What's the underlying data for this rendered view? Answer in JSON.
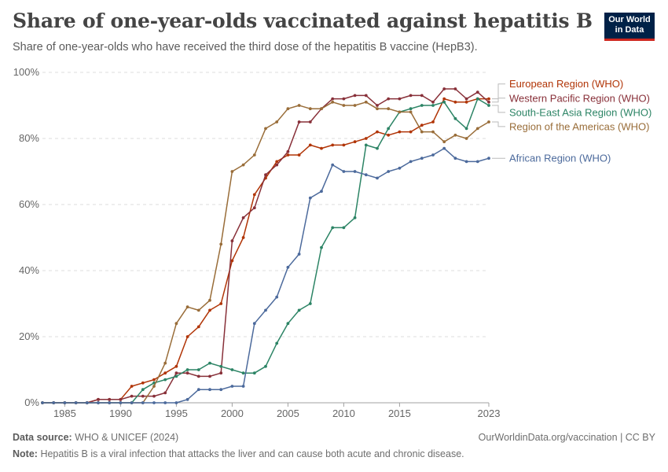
{
  "header": {
    "title": "Share of one-year-olds vaccinated against hepatitis B",
    "subtitle": "Share of one-year-olds who have received the third dose of the hepatitis B vaccine (HepB3).",
    "logo_line1": "Our World",
    "logo_line2": "in Data"
  },
  "footer": {
    "source_label": "Data source:",
    "source_value": "WHO & UNICEF (2024)",
    "url": "OurWorldinData.org/vaccination | CC BY",
    "note_label": "Note:",
    "note_value": "Hepatitis B is a viral infection that attacks the liver and can cause both acute and chronic disease."
  },
  "chart_data": {
    "type": "line",
    "x": [
      1983,
      1984,
      1985,
      1986,
      1987,
      1988,
      1989,
      1990,
      1991,
      1992,
      1993,
      1994,
      1995,
      1996,
      1997,
      1998,
      1999,
      2000,
      2001,
      2002,
      2003,
      2004,
      2005,
      2006,
      2007,
      2008,
      2009,
      2010,
      2011,
      2012,
      2013,
      2014,
      2015,
      2016,
      2017,
      2018,
      2019,
      2020,
      2021,
      2022,
      2023
    ],
    "xlim": [
      1983,
      2023
    ],
    "x_ticks": [
      1985,
      1990,
      1995,
      2000,
      2005,
      2010,
      2015,
      2023
    ],
    "y_ticks": [
      0,
      20,
      40,
      60,
      80,
      100
    ],
    "y_tick_labels": [
      "0%",
      "20%",
      "40%",
      "60%",
      "80%",
      "100%"
    ],
    "ylim": [
      0,
      100
    ],
    "grid": "horizontal dashed",
    "legend": "right, labels at line ends",
    "series": [
      {
        "name": "European Region (WHO)",
        "color": "#b13507",
        "label_y": 96.5,
        "values": [
          0,
          0,
          0,
          0,
          0,
          1,
          1,
          1,
          5,
          6,
          7,
          9,
          11,
          20,
          23,
          28,
          30,
          43,
          50,
          63,
          68,
          73,
          75,
          75,
          78,
          77,
          78,
          78,
          79,
          80,
          82,
          81,
          82,
          82,
          84,
          85,
          92,
          91,
          91,
          92,
          92
        ]
      },
      {
        "name": "Western Pacific Region (WHO)",
        "color": "#883039",
        "label_y": 92.2,
        "values": [
          0,
          0,
          0,
          0,
          0,
          1,
          1,
          1,
          2,
          2,
          2,
          3,
          9,
          9,
          8,
          8,
          9,
          49,
          56,
          59,
          69,
          72,
          76,
          85,
          85,
          89,
          92,
          92,
          93,
          93,
          90,
          92,
          92,
          93,
          93,
          91,
          95,
          95,
          92,
          94,
          91
        ]
      },
      {
        "name": "South-East Asia Region (WHO)",
        "color": "#2c8465",
        "label_y": 87.9,
        "values": [
          0,
          0,
          0,
          0,
          0,
          0,
          0,
          0,
          0,
          4,
          6,
          7,
          8,
          10,
          10,
          12,
          11,
          10,
          9,
          9,
          11,
          18,
          24,
          28,
          30,
          47,
          53,
          53,
          56,
          78,
          77,
          83,
          88,
          89,
          90,
          90,
          91,
          86,
          83,
          92,
          90
        ]
      },
      {
        "name": "Region of the Americas (WHO)",
        "color": "#996d39",
        "label_y": 83.6,
        "values": [
          0,
          0,
          0,
          0,
          0,
          0,
          0,
          0,
          0,
          0,
          5,
          12,
          24,
          29,
          28,
          31,
          48,
          70,
          72,
          75,
          83,
          85,
          89,
          90,
          89,
          89,
          91,
          90,
          90,
          91,
          89,
          89,
          88,
          88,
          82,
          82,
          79,
          81,
          80,
          83,
          85
        ]
      },
      {
        "name": "African Region (WHO)",
        "color": "#4c6a9c",
        "label_y": 74,
        "values": [
          0,
          0,
          0,
          0,
          0,
          0,
          0,
          0,
          0,
          0,
          0,
          0,
          0,
          1,
          4,
          4,
          4,
          5,
          5,
          24,
          28,
          32,
          41,
          45,
          62,
          64,
          72,
          70,
          70,
          69,
          68,
          70,
          71,
          73,
          74,
          75,
          77,
          74,
          73,
          73,
          74
        ]
      }
    ]
  }
}
